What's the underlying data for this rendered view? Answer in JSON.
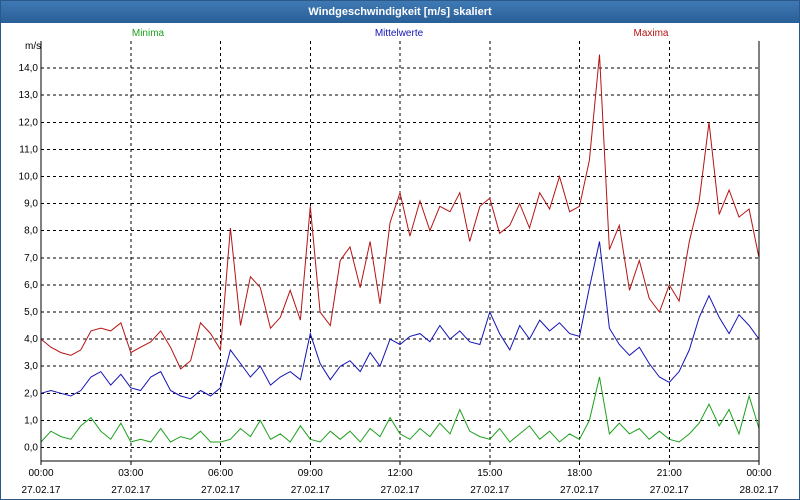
{
  "window": {
    "title": "Windgeschwindigkeit [m/s] skaliert"
  },
  "chart_data": {
    "type": "line",
    "title": "Windgeschwindigkeit [m/s] skaliert",
    "ylabel": "m/s",
    "xlabel": "",
    "ylim": [
      -0.5,
      15
    ],
    "yticks": [
      0,
      1,
      2,
      3,
      4,
      5,
      6,
      7,
      8,
      9,
      10,
      11,
      12,
      13,
      14
    ],
    "ytick_labels": [
      "0,0",
      "1,0",
      "2,0",
      "3,0",
      "4,0",
      "5,0",
      "6,0",
      "7,0",
      "8,0",
      "9,0",
      "10,0",
      "11,0",
      "12,0",
      "13,0",
      "14,0"
    ],
    "xlim_hours": [
      0,
      24
    ],
    "xticks": [
      {
        "hour": 0,
        "time": "00:00",
        "date": "27.02.17"
      },
      {
        "hour": 3,
        "time": "03:00",
        "date": "27.02.17"
      },
      {
        "hour": 6,
        "time": "06:00",
        "date": "27.02.17"
      },
      {
        "hour": 9,
        "time": "09:00",
        "date": "27.02.17"
      },
      {
        "hour": 12,
        "time": "12:00",
        "date": "27.02.17"
      },
      {
        "hour": 15,
        "time": "15:00",
        "date": "27.02.17"
      },
      {
        "hour": 18,
        "time": "18:00",
        "date": "27.02.17"
      },
      {
        "hour": 21,
        "time": "21:00",
        "date": "27.02.17"
      },
      {
        "hour": 24,
        "time": "00:00",
        "date": "28.02.17"
      }
    ],
    "grid": true,
    "legend_position": "top",
    "series": [
      {
        "name": "Minima",
        "color": "#1ea01e",
        "x": [
          0,
          0.33,
          0.67,
          1,
          1.33,
          1.67,
          2,
          2.33,
          2.67,
          3,
          3.33,
          3.67,
          4,
          4.33,
          4.67,
          5,
          5.33,
          5.67,
          6,
          6.33,
          6.67,
          7,
          7.33,
          7.67,
          8,
          8.33,
          8.67,
          9,
          9.33,
          9.67,
          10,
          10.33,
          10.67,
          11,
          11.33,
          11.67,
          12,
          12.33,
          12.67,
          13,
          13.33,
          13.67,
          14,
          14.33,
          14.67,
          15,
          15.33,
          15.67,
          16,
          16.33,
          16.67,
          17,
          17.33,
          17.67,
          18,
          18.33,
          18.67,
          19,
          19.33,
          19.67,
          20,
          20.33,
          20.67,
          21,
          21.33,
          21.67,
          22,
          22.33,
          22.67,
          23,
          23.33,
          23.67,
          24
        ],
        "values": [
          0.2,
          0.6,
          0.4,
          0.3,
          0.8,
          1.1,
          0.6,
          0.3,
          0.9,
          0.2,
          0.3,
          0.2,
          0.7,
          0.2,
          0.4,
          0.3,
          0.6,
          0.2,
          0.2,
          0.3,
          0.7,
          0.4,
          1.0,
          0.3,
          0.5,
          0.2,
          0.8,
          0.3,
          0.2,
          0.6,
          0.3,
          0.6,
          0.2,
          0.7,
          0.4,
          1.1,
          0.5,
          0.3,
          0.7,
          0.4,
          0.9,
          0.5,
          1.4,
          0.6,
          0.4,
          0.3,
          0.7,
          0.2,
          0.5,
          0.8,
          0.3,
          0.6,
          0.2,
          0.5,
          0.3,
          1.0,
          2.6,
          0.5,
          0.9,
          0.5,
          0.7,
          0.3,
          0.6,
          0.3,
          0.2,
          0.5,
          0.9,
          1.6,
          0.8,
          1.4,
          0.5,
          1.9,
          0.7
        ]
      },
      {
        "name": "Mittelwerte",
        "color": "#1414b4",
        "x": [
          0,
          0.33,
          0.67,
          1,
          1.33,
          1.67,
          2,
          2.33,
          2.67,
          3,
          3.33,
          3.67,
          4,
          4.33,
          4.67,
          5,
          5.33,
          5.67,
          6,
          6.33,
          6.67,
          7,
          7.33,
          7.67,
          8,
          8.33,
          8.67,
          9,
          9.33,
          9.67,
          10,
          10.33,
          10.67,
          11,
          11.33,
          11.67,
          12,
          12.33,
          12.67,
          13,
          13.33,
          13.67,
          14,
          14.33,
          14.67,
          15,
          15.33,
          15.67,
          16,
          16.33,
          16.67,
          17,
          17.33,
          17.67,
          18,
          18.33,
          18.67,
          19,
          19.33,
          19.67,
          20,
          20.33,
          20.67,
          21,
          21.33,
          21.67,
          22,
          22.33,
          22.67,
          23,
          23.33,
          23.67,
          24
        ],
        "values": [
          2.0,
          2.1,
          2.0,
          1.9,
          2.1,
          2.6,
          2.8,
          2.3,
          2.7,
          2.2,
          2.1,
          2.6,
          2.8,
          2.1,
          1.9,
          1.8,
          2.1,
          1.9,
          2.2,
          3.6,
          3.1,
          2.6,
          3.0,
          2.3,
          2.6,
          2.8,
          2.5,
          4.2,
          3.1,
          2.5,
          3.0,
          3.2,
          2.8,
          3.5,
          3.0,
          4.0,
          3.8,
          4.1,
          4.2,
          3.9,
          4.5,
          4.0,
          4.3,
          3.9,
          3.8,
          5.0,
          4.2,
          3.6,
          4.5,
          4.0,
          4.7,
          4.3,
          4.6,
          4.2,
          4.1,
          5.9,
          7.6,
          4.4,
          3.8,
          3.4,
          3.7,
          3.1,
          2.6,
          2.4,
          2.8,
          3.6,
          4.8,
          5.6,
          4.8,
          4.2,
          4.9,
          4.5,
          4.0
        ]
      },
      {
        "name": "Maxima",
        "color": "#b41414",
        "x": [
          0,
          0.33,
          0.67,
          1,
          1.33,
          1.67,
          2,
          2.33,
          2.67,
          3,
          3.33,
          3.67,
          4,
          4.33,
          4.67,
          5,
          5.33,
          5.67,
          6,
          6.33,
          6.67,
          7,
          7.33,
          7.67,
          8,
          8.33,
          8.67,
          9,
          9.33,
          9.67,
          10,
          10.33,
          10.67,
          11,
          11.33,
          11.67,
          12,
          12.33,
          12.67,
          13,
          13.33,
          13.67,
          14,
          14.33,
          14.67,
          15,
          15.33,
          15.67,
          16,
          16.33,
          16.67,
          17,
          17.33,
          17.67,
          18,
          18.33,
          18.67,
          19,
          19.33,
          19.67,
          20,
          20.33,
          20.67,
          21,
          21.33,
          21.67,
          22,
          22.33,
          22.67,
          23,
          23.33,
          23.67,
          24
        ],
        "values": [
          4.0,
          3.7,
          3.5,
          3.4,
          3.6,
          4.3,
          4.4,
          4.3,
          4.6,
          3.5,
          3.7,
          3.9,
          4.3,
          3.7,
          2.9,
          3.2,
          4.6,
          4.2,
          3.6,
          8.1,
          4.5,
          6.3,
          5.9,
          4.4,
          4.8,
          5.8,
          4.7,
          8.9,
          5.0,
          4.5,
          6.9,
          7.4,
          5.9,
          7.6,
          5.3,
          8.3,
          9.4,
          7.8,
          9.1,
          8.0,
          8.9,
          8.7,
          9.4,
          7.6,
          8.9,
          9.2,
          7.9,
          8.2,
          9.0,
          8.1,
          9.4,
          8.8,
          10.0,
          8.7,
          8.9,
          10.6,
          14.5,
          7.3,
          8.2,
          5.8,
          6.9,
          5.5,
          5.0,
          6.0,
          5.4,
          7.6,
          9.1,
          12.0,
          8.6,
          9.5,
          8.5,
          8.8,
          7.0
        ]
      }
    ]
  }
}
